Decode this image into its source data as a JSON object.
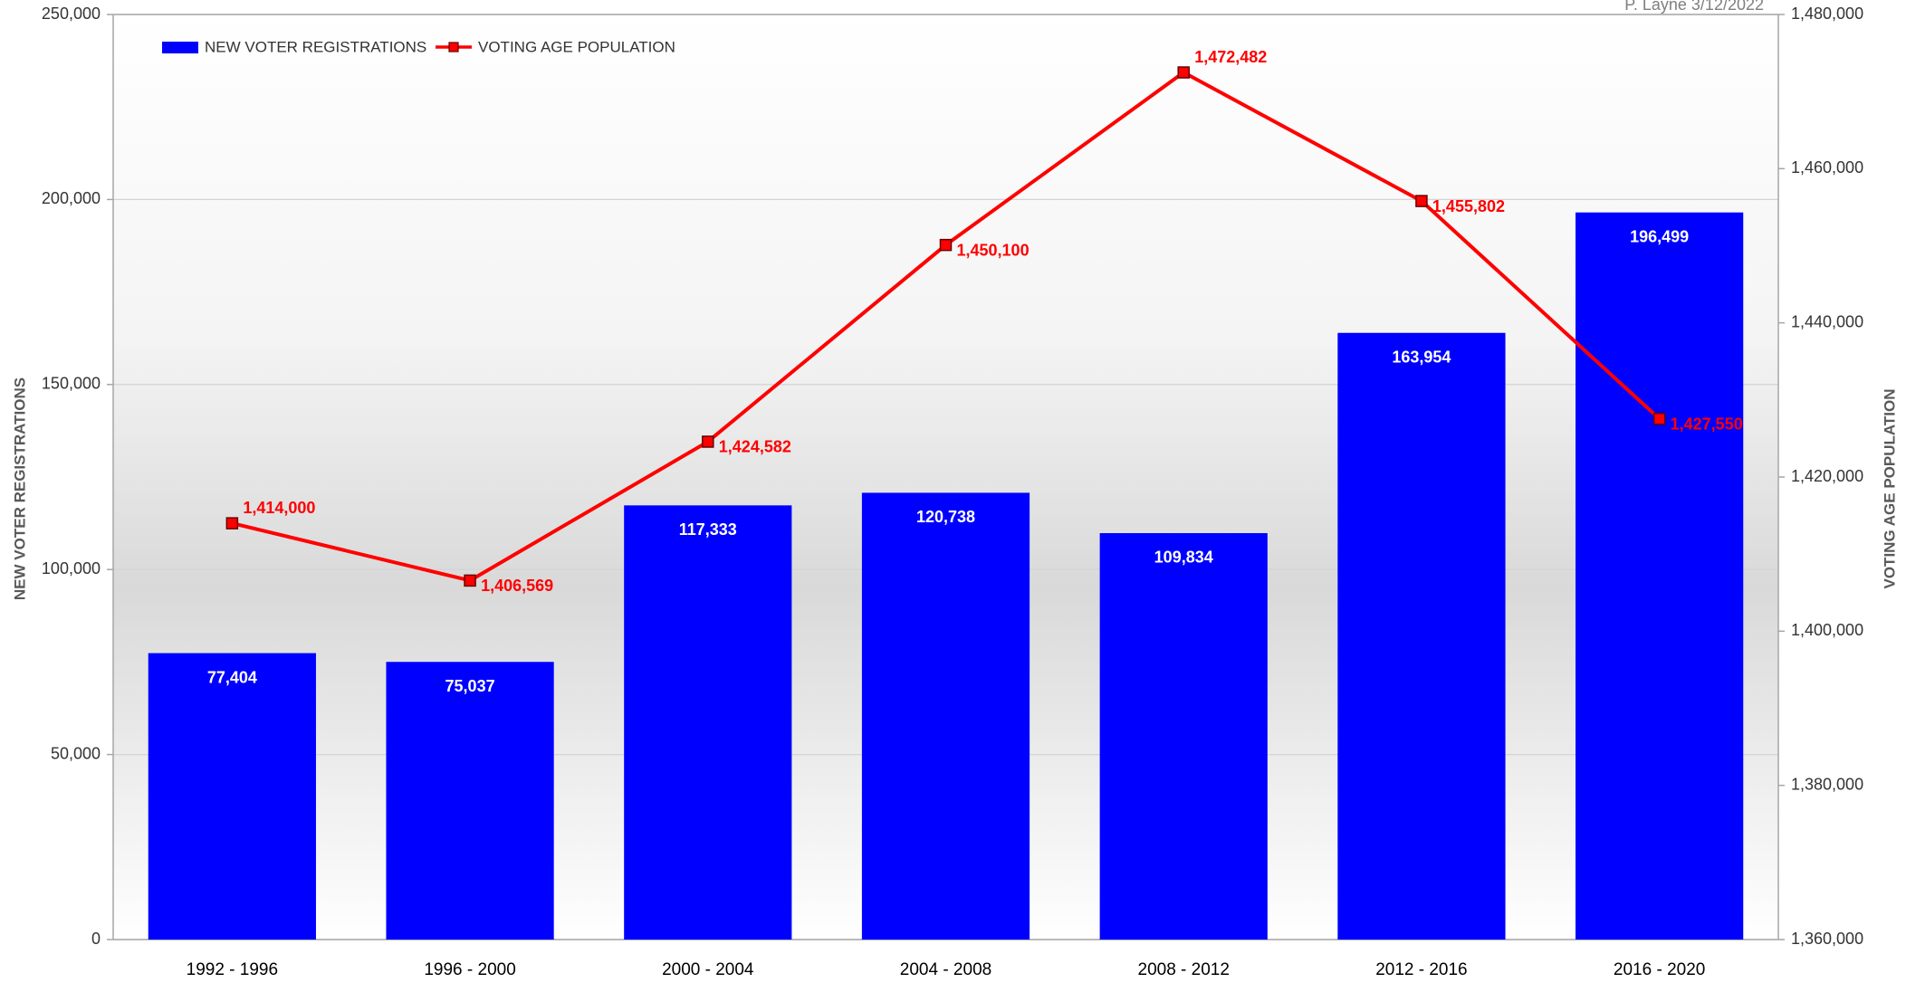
{
  "chart_data": {
    "type": "bar-line",
    "annotation": "P. Layne 3/12/2022",
    "ylabel": "NEW VOTER REGISTRATIONS",
    "y2label": "VOTING AGE POPULATION",
    "categories": [
      "1992 - 1996",
      "1996 - 2000",
      "2000 - 2004",
      "2004 - 2008",
      "2008 - 2012",
      "2012 - 2016",
      "2016 - 2020"
    ],
    "series": [
      {
        "name": "NEW VOTER REGISTRATIONS",
        "type": "bar",
        "color": "#0000ff",
        "values": [
          77404,
          75037,
          117333,
          120738,
          109834,
          163954,
          196499
        ],
        "value_labels": [
          "77,404",
          "75,037",
          "117,333",
          "120,738",
          "109,834",
          "163,954",
          "196,499"
        ]
      },
      {
        "name": "VOTING AGE POPULATION",
        "type": "line",
        "axis": "y2",
        "color": "#ff0000",
        "values": [
          1414000,
          1406569,
          1424582,
          1450100,
          1472482,
          1455802,
          1427550
        ],
        "value_labels": [
          "1,414,000",
          "1,406,569",
          "1,424,582",
          "1,450,100",
          "1,472,482",
          "1,455,802",
          "1,427,550"
        ]
      }
    ],
    "ylim": [
      0,
      250000
    ],
    "yticks": [
      0,
      {
        "value": 50000,
        "label": "50,000"
      },
      {
        "value": 100000,
        "label": "100,000"
      },
      {
        "value": 150000,
        "label": "150,000"
      },
      {
        "value": 200000,
        "label": "200,000"
      },
      {
        "value": 250000,
        "label": "250,000"
      }
    ],
    "y2lim": [
      1360000,
      1480000
    ],
    "y2ticks": [
      {
        "value": 1360000,
        "label": "1,360,000"
      },
      {
        "value": 1380000,
        "label": "1,380,000"
      },
      {
        "value": 1400000,
        "label": "1,400,000"
      },
      {
        "value": 1420000,
        "label": "1,420,000"
      },
      {
        "value": 1440000,
        "label": "1,440,000"
      },
      {
        "value": 1460000,
        "label": "1,460,000"
      },
      {
        "value": 1480000,
        "label": "1,480,000"
      }
    ],
    "grid": true
  }
}
